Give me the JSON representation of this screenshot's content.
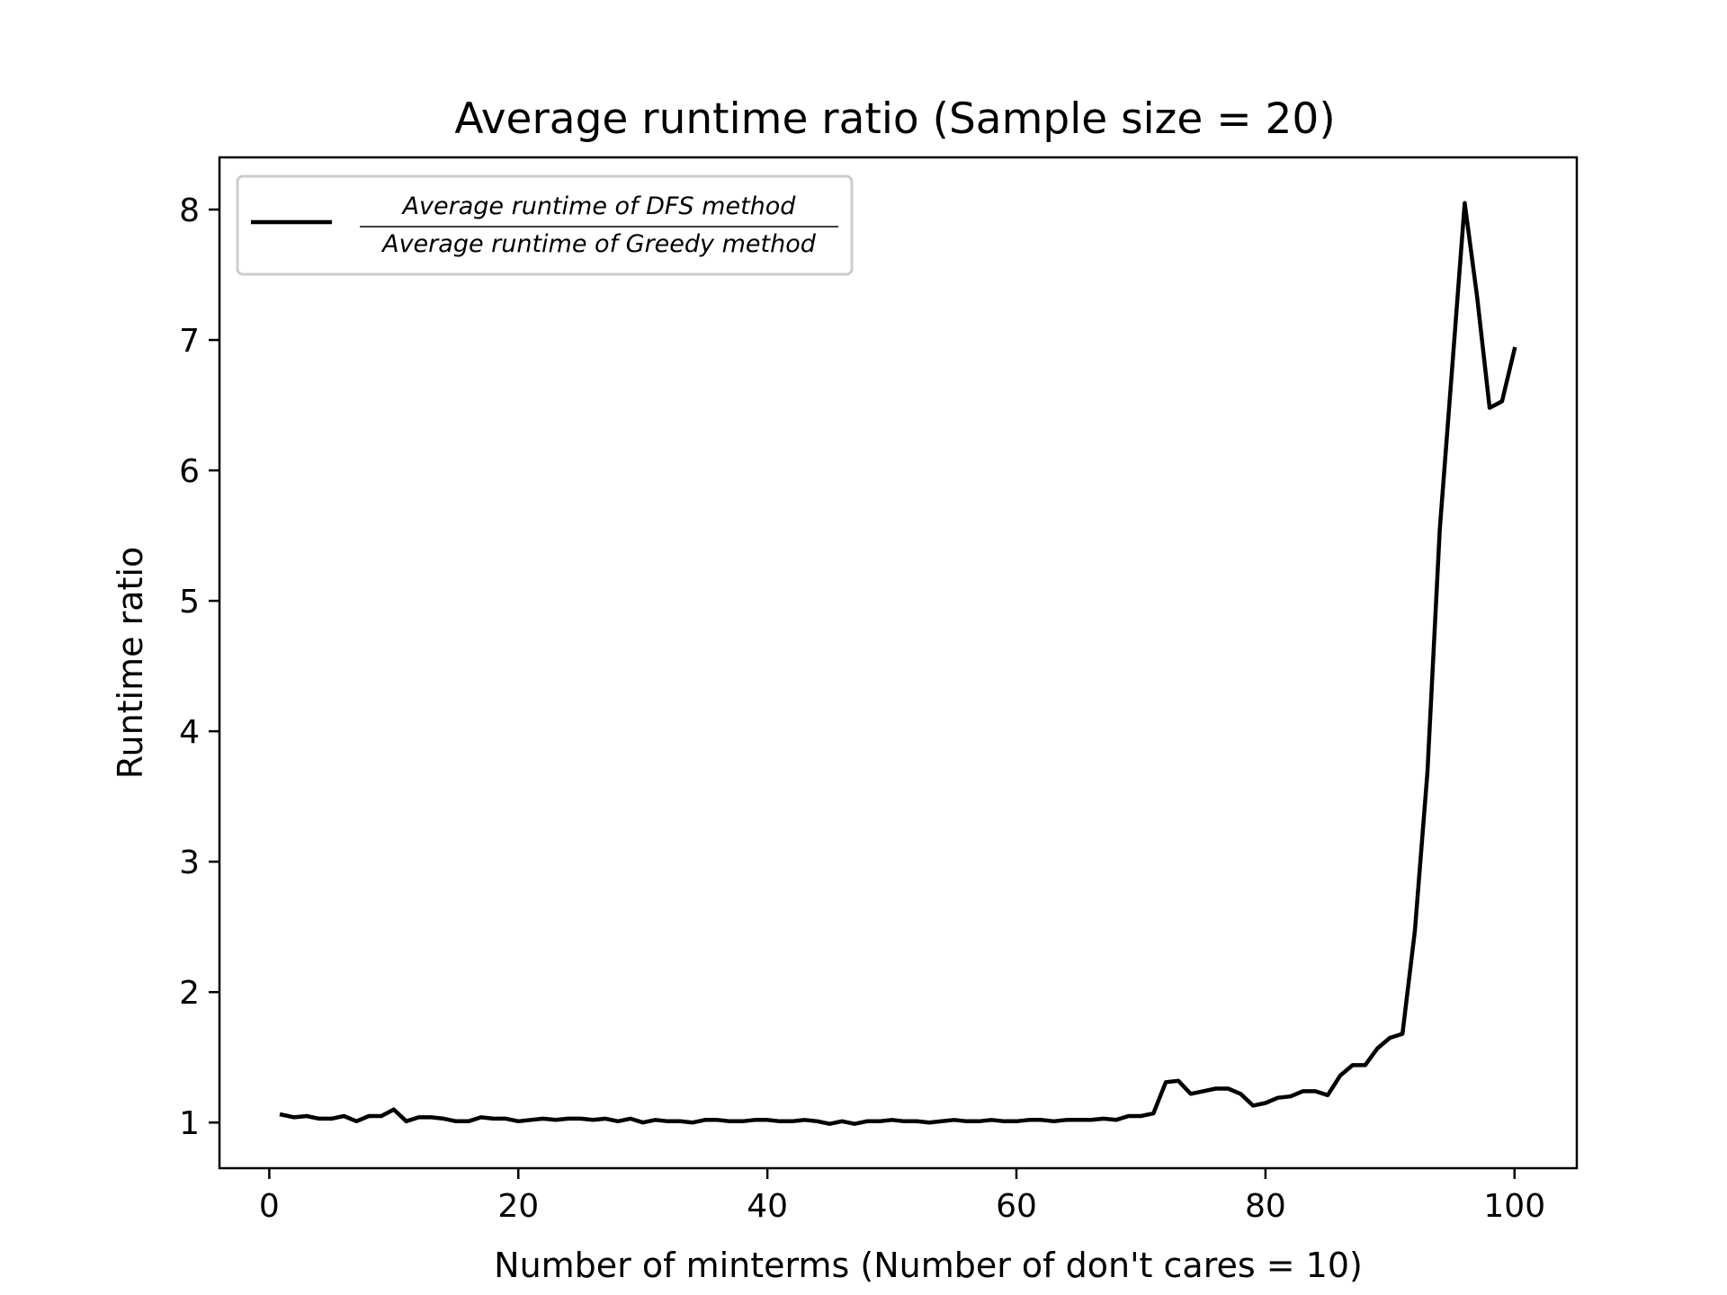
{
  "chart_data": {
    "type": "line",
    "title": "Average runtime ratio (Sample size = 20)",
    "xlabel": "Number of minterms (Number of don't cares = 10)",
    "ylabel": "Runtime ratio",
    "xlim": [
      -4,
      105
    ],
    "ylim": [
      0.65,
      8.4
    ],
    "xticks": [
      0,
      20,
      40,
      60,
      80,
      100
    ],
    "yticks": [
      1,
      2,
      3,
      4,
      5,
      6,
      7,
      8
    ],
    "grid": false,
    "legend_position": "top-left",
    "series": [
      {
        "name": "Average runtime of DFS method / Average runtime of Greedy method",
        "legend_numerator": "Average runtime of DFS method",
        "legend_denominator": "Average runtime of Greedy method",
        "color": "#000000",
        "x": [
          1,
          2,
          3,
          4,
          5,
          6,
          7,
          8,
          9,
          10,
          11,
          12,
          13,
          14,
          15,
          16,
          17,
          18,
          19,
          20,
          21,
          22,
          23,
          24,
          25,
          26,
          27,
          28,
          29,
          30,
          31,
          32,
          33,
          34,
          35,
          36,
          37,
          38,
          39,
          40,
          41,
          42,
          43,
          44,
          45,
          46,
          47,
          48,
          49,
          50,
          51,
          52,
          53,
          54,
          55,
          56,
          57,
          58,
          59,
          60,
          61,
          62,
          63,
          64,
          65,
          66,
          67,
          68,
          69,
          70,
          71,
          72,
          73,
          74,
          75,
          76,
          77,
          78,
          79,
          80,
          81,
          82,
          83,
          84,
          85,
          86,
          87,
          88,
          89,
          90,
          91,
          92,
          93,
          94,
          95,
          96,
          97,
          98,
          99,
          100
        ],
        "y": [
          1.06,
          1.04,
          1.05,
          1.03,
          1.03,
          1.05,
          1.01,
          1.05,
          1.05,
          1.1,
          1.01,
          1.04,
          1.04,
          1.03,
          1.01,
          1.01,
          1.04,
          1.03,
          1.03,
          1.01,
          1.02,
          1.03,
          1.02,
          1.03,
          1.03,
          1.02,
          1.03,
          1.01,
          1.03,
          1.0,
          1.02,
          1.01,
          1.01,
          1.0,
          1.02,
          1.02,
          1.01,
          1.01,
          1.02,
          1.02,
          1.01,
          1.01,
          1.02,
          1.01,
          0.99,
          1.01,
          0.99,
          1.01,
          1.01,
          1.02,
          1.01,
          1.01,
          1.0,
          1.01,
          1.02,
          1.01,
          1.01,
          1.02,
          1.01,
          1.01,
          1.02,
          1.02,
          1.01,
          1.02,
          1.02,
          1.02,
          1.03,
          1.02,
          1.05,
          1.05,
          1.07,
          1.31,
          1.32,
          1.22,
          1.24,
          1.26,
          1.26,
          1.22,
          1.13,
          1.15,
          1.19,
          1.2,
          1.24,
          1.24,
          1.21,
          1.36,
          1.44,
          1.44,
          1.57,
          1.65,
          1.68,
          2.47,
          3.68,
          5.55,
          6.8,
          8.05,
          7.33,
          6.48,
          6.53,
          6.93
        ]
      }
    ]
  }
}
